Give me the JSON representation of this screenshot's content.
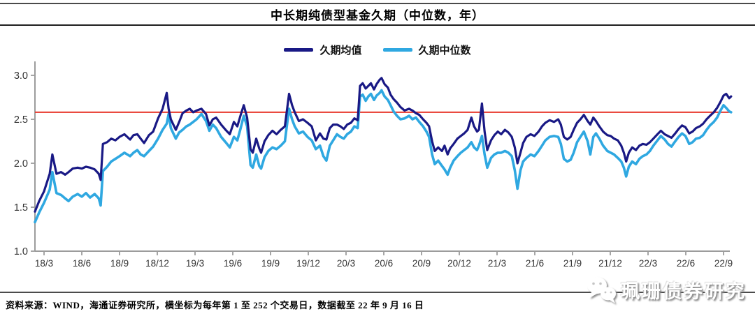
{
  "title": "中长期纯债型基金久期（中位数，年）",
  "legend": {
    "items": [
      {
        "label": "久期均值",
        "color": "#191985"
      },
      {
        "label": "久期中位数",
        "color": "#2FA8E1"
      }
    ]
  },
  "footer": {
    "source_note": "资料来源：WIND，海通证券研究所，横坐标为每年第 1 至 252 个交易日，数据截至 22 年 9 月 16 日"
  },
  "watermark": {
    "icon": "wechat-icon",
    "text": "珮珊债券研究"
  },
  "chart_data": {
    "type": "line",
    "title": "中长期纯债型基金久期（中位数，年）",
    "grid": false,
    "legend_position": "top-center",
    "x_unit": "quarter index: 0 = 18/3, each step = 3 months (x axis = trading days 1-252 per year)",
    "x_tick_labels": [
      "18/3",
      "18/6",
      "18/9",
      "18/12",
      "19/3",
      "19/6",
      "19/9",
      "19/12",
      "20/3",
      "20/6",
      "20/9",
      "20/12",
      "21/3",
      "21/6",
      "21/9",
      "21/12",
      "22/3",
      "22/6",
      "22/9"
    ],
    "y_ticks": [
      1.0,
      1.5,
      2.0,
      2.5,
      3.0
    ],
    "ylim": [
      1.0,
      3.16
    ],
    "axis_color": "#9c9c9c",
    "tick_label_color": "#333333",
    "reference_line": {
      "value": 2.58,
      "color": "#E8382C"
    },
    "x": [
      -0.24,
      -0.13,
      0,
      0.15,
      0.22,
      0.33,
      0.45,
      0.56,
      0.65,
      0.76,
      0.89,
      1,
      1.11,
      1.22,
      1.34,
      1.45,
      1.5,
      1.56,
      1.67,
      1.78,
      1.89,
      2,
      2.13,
      2.28,
      2.37,
      2.47,
      2.56,
      2.65,
      2.78,
      2.89,
      3.02,
      3.14,
      3.25,
      3.3,
      3.36,
      3.49,
      3.58,
      3.67,
      3.77,
      3.86,
      3.95,
      4.04,
      4.17,
      4.29,
      4.38,
      4.47,
      4.56,
      4.69,
      4.81,
      4.92,
      5.03,
      5.12,
      5.21,
      5.29,
      5.38,
      5.47,
      5.53,
      5.62,
      5.7,
      5.75,
      5.84,
      5.94,
      6.05,
      6.16,
      6.27,
      6.38,
      6.49,
      6.57,
      6.64,
      6.75,
      6.86,
      6.98,
      7.09,
      7.2,
      7.31,
      7.4,
      7.48,
      7.57,
      7.66,
      7.76,
      7.85,
      7.94,
      8.03,
      8.13,
      8.22,
      8.31,
      8.37,
      8.44,
      8.52,
      8.59,
      8.66,
      8.74,
      8.81,
      8.89,
      8.94,
      9.02,
      9.11,
      9.18,
      9.26,
      9.35,
      9.44,
      9.55,
      9.67,
      9.76,
      9.85,
      9.94,
      10.04,
      10.13,
      10.2,
      10.28,
      10.35,
      10.44,
      10.54,
      10.61,
      10.69,
      10.76,
      10.85,
      10.95,
      11.04,
      11.13,
      11.22,
      11.32,
      11.39,
      11.47,
      11.52,
      11.6,
      11.67,
      11.74,
      11.84,
      11.93,
      12.02,
      12.11,
      12.21,
      12.3,
      12.39,
      12.47,
      12.54,
      12.62,
      12.69,
      12.78,
      12.89,
      12.99,
      13.1,
      13.19,
      13.28,
      13.39,
      13.51,
      13.62,
      13.69,
      13.77,
      13.86,
      13.95,
      14.03,
      14.12,
      14.21,
      14.3,
      14.4,
      14.47,
      14.55,
      14.62,
      14.71,
      14.81,
      14.92,
      15.01,
      15.1,
      15.2,
      15.29,
      15.36,
      15.42,
      15.49,
      15.58,
      15.68,
      15.77,
      15.86,
      15.96,
      16.05,
      16.14,
      16.25,
      16.34,
      16.44,
      16.53,
      16.62,
      16.72,
      16.81,
      16.9,
      16.99,
      17.09,
      17.18,
      17.27,
      17.37,
      17.46,
      17.55,
      17.64,
      17.74,
      17.83,
      17.92,
      18,
      18.07,
      18.15,
      18.2
    ],
    "series": [
      {
        "name": "久期均值",
        "color": "#191985",
        "values": [
          1.45,
          1.57,
          1.68,
          1.88,
          2.1,
          1.88,
          1.9,
          1.87,
          1.9,
          1.94,
          1.95,
          1.94,
          1.96,
          1.95,
          1.93,
          1.88,
          1.81,
          2.22,
          2.24,
          2.28,
          2.26,
          2.3,
          2.33,
          2.27,
          2.32,
          2.33,
          2.28,
          2.23,
          2.32,
          2.36,
          2.51,
          2.62,
          2.8,
          2.62,
          2.5,
          2.38,
          2.47,
          2.57,
          2.6,
          2.62,
          2.58,
          2.6,
          2.62,
          2.56,
          2.43,
          2.5,
          2.52,
          2.44,
          2.38,
          2.33,
          2.47,
          2.42,
          2.55,
          2.66,
          2.52,
          2.16,
          2.12,
          2.28,
          2.17,
          2.12,
          2.25,
          2.32,
          2.37,
          2.33,
          2.38,
          2.42,
          2.79,
          2.66,
          2.58,
          2.48,
          2.5,
          2.46,
          2.42,
          2.26,
          2.34,
          2.28,
          2.27,
          2.4,
          2.44,
          2.44,
          2.42,
          2.39,
          2.44,
          2.46,
          2.51,
          2.49,
          2.88,
          2.91,
          2.85,
          2.88,
          2.91,
          2.84,
          2.9,
          2.95,
          2.97,
          2.9,
          2.86,
          2.78,
          2.73,
          2.69,
          2.64,
          2.6,
          2.62,
          2.6,
          2.57,
          2.55,
          2.5,
          2.46,
          2.42,
          2.25,
          2.14,
          2.18,
          2.14,
          2.2,
          2.1,
          2.17,
          2.22,
          2.28,
          2.31,
          2.34,
          2.38,
          2.52,
          2.42,
          2.36,
          2.38,
          2.68,
          2.36,
          2.15,
          2.26,
          2.32,
          2.36,
          2.33,
          2.38,
          2.35,
          2.3,
          2.18,
          2,
          2.12,
          2.23,
          2.3,
          2.33,
          2.31,
          2.36,
          2.42,
          2.46,
          2.49,
          2.47,
          2.5,
          2.44,
          2.3,
          2.27,
          2.3,
          2.38,
          2.46,
          2.5,
          2.55,
          2.48,
          2.44,
          2.52,
          2.48,
          2.42,
          2.36,
          2.32,
          2.31,
          2.28,
          2.26,
          2.2,
          2.12,
          2.02,
          2.12,
          2.18,
          2.15,
          2.2,
          2.22,
          2.21,
          2.24,
          2.28,
          2.33,
          2.37,
          2.33,
          2.31,
          2.29,
          2.34,
          2.39,
          2.43,
          2.41,
          2.34,
          2.36,
          2.4,
          2.42,
          2.45,
          2.5,
          2.54,
          2.58,
          2.63,
          2.7,
          2.77,
          2.79,
          2.74,
          2.76
        ]
      },
      {
        "name": "久期中位数",
        "color": "#2FA8E1",
        "values": [
          1.33,
          1.44,
          1.55,
          1.7,
          1.9,
          1.66,
          1.64,
          1.6,
          1.57,
          1.62,
          1.65,
          1.62,
          1.66,
          1.61,
          1.65,
          1.6,
          1.52,
          1.91,
          1.96,
          2.02,
          2.05,
          2.08,
          2.12,
          2.08,
          2.12,
          2.15,
          2.1,
          2.08,
          2.14,
          2.19,
          2.28,
          2.38,
          2.45,
          2.56,
          2.4,
          2.28,
          2.35,
          2.38,
          2.42,
          2.44,
          2.47,
          2.5,
          2.56,
          2.48,
          2.37,
          2.44,
          2.4,
          2.3,
          2.24,
          2.18,
          2.3,
          2.26,
          2.4,
          2.54,
          2.42,
          1.98,
          1.95,
          2.1,
          1.97,
          1.94,
          2.07,
          2.14,
          2.18,
          2.16,
          2.2,
          2.25,
          2.62,
          2.5,
          2.42,
          2.34,
          2.36,
          2.3,
          2.26,
          2.16,
          2.2,
          2.08,
          2.03,
          2.2,
          2.26,
          2.33,
          2.3,
          2.28,
          2.33,
          2.36,
          2.42,
          2.4,
          2.76,
          2.78,
          2.71,
          2.76,
          2.79,
          2.72,
          2.77,
          2.8,
          2.83,
          2.76,
          2.72,
          2.66,
          2.59,
          2.54,
          2.5,
          2.51,
          2.54,
          2.5,
          2.52,
          2.47,
          2.42,
          2.36,
          2.3,
          2.1,
          1.99,
          2.03,
          1.97,
          1.93,
          1.87,
          1.95,
          2.03,
          2.08,
          2.12,
          2.15,
          2.18,
          2.24,
          2.18,
          2.15,
          2.2,
          2.31,
          2.1,
          1.95,
          2.06,
          2.1,
          2.12,
          2.12,
          2.14,
          2.12,
          2.08,
          1.92,
          1.71,
          1.92,
          2.02,
          2.06,
          2.1,
          2.08,
          2.14,
          2.2,
          2.26,
          2.3,
          2.31,
          2.3,
          2.22,
          2.05,
          2.02,
          2.04,
          2.12,
          2.24,
          2.3,
          2.36,
          2.25,
          2.1,
          2.3,
          2.34,
          2.28,
          2.2,
          2.14,
          2.12,
          2.1,
          2.06,
          2.02,
          1.95,
          1.85,
          1.96,
          2.02,
          1.99,
          2.05,
          2.08,
          2.1,
          2.14,
          2.2,
          2.26,
          2.31,
          2.27,
          2.22,
          2.19,
          2.25,
          2.3,
          2.34,
          2.31,
          2.22,
          2.24,
          2.28,
          2.29,
          2.32,
          2.38,
          2.43,
          2.47,
          2.52,
          2.6,
          2.66,
          2.63,
          2.59,
          2.58
        ]
      }
    ]
  }
}
